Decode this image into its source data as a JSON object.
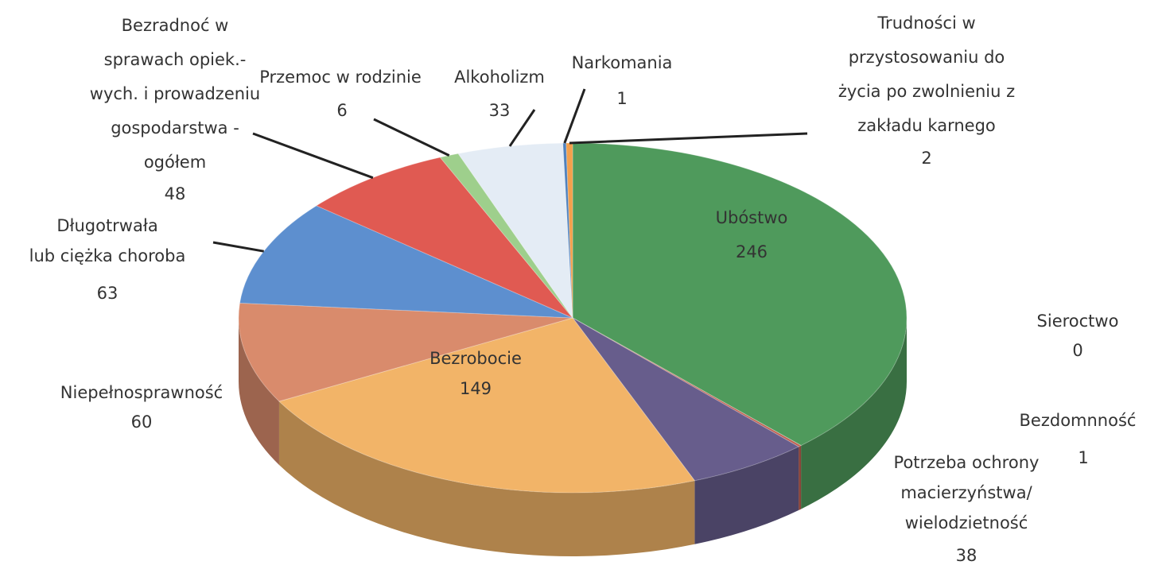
{
  "chart_data": {
    "type": "pie3d",
    "categories": [
      "Ubóstwo",
      "Sieroctwo",
      "Bezdomnność",
      "Potrzeba ochrony\nmacierzyństwa/\nwielodzietność",
      "Bezrobocie",
      "Niepełnosprawność",
      "Długotrwała\nlub ciężka choroba",
      "Bezradnoć w\nsprawach opiek.-\nwych. i prowadzeniu\ngospodarstwa -\nogółem",
      "Przemoc w rodzinie",
      "Alkoholizm",
      "Narkomania",
      "Trudności w\nprzystosowaniu do\nżycia po zwolnieniu z\nzakładu karnego"
    ],
    "values": [
      246,
      0,
      1,
      38,
      149,
      60,
      63,
      48,
      6,
      33,
      1,
      2
    ],
    "colors": [
      "#4f9a5c",
      "#7aa0d0",
      "#c06050",
      "#675d8c",
      "#f2b468",
      "#d98b6c",
      "#5d8fcf",
      "#e05a52",
      "#9ecf8c",
      "#e4ecf5",
      "#4f81bd",
      "#f3a04c"
    ]
  }
}
